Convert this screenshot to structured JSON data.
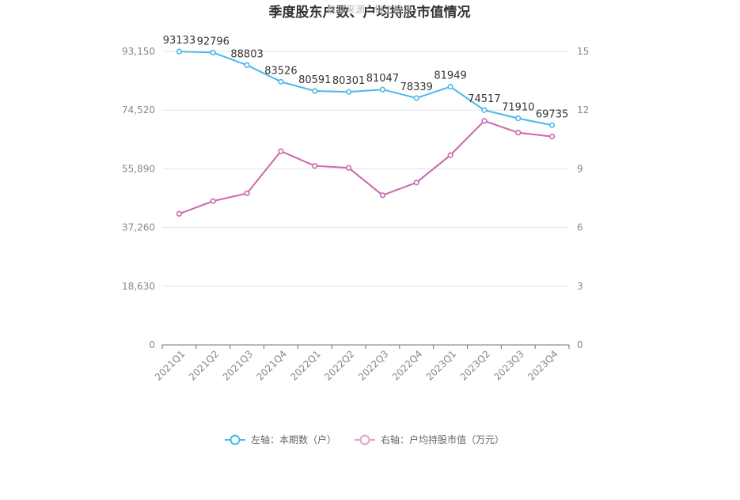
{
  "chart_data": {
    "type": "line",
    "title": "季度股东户数、户均持股市值情况",
    "watermark": "数据来源：恒生聚源",
    "categories": [
      "2021Q1",
      "2021Q2",
      "2021Q3",
      "2021Q4",
      "2022Q1",
      "2022Q2",
      "2022Q3",
      "2022Q4",
      "2023Q1",
      "2023Q2",
      "2023Q3",
      "2023Q4"
    ],
    "y_left": {
      "ticks": [
        "0",
        "18,630",
        "37,260",
        "55,890",
        "74,520",
        "93,150"
      ],
      "ylim": [
        0,
        93150
      ]
    },
    "y_right": {
      "ticks": [
        "0",
        "3",
        "6",
        "9",
        "12",
        "15"
      ],
      "ylim": [
        0,
        15
      ]
    },
    "series": [
      {
        "name": "左轴：本期数（户）",
        "axis": "left",
        "color": "#4ab8e8",
        "values": [
          93133,
          92796,
          88803,
          83526,
          80591,
          80301,
          81047,
          78339,
          81949,
          74517,
          71910,
          69735
        ],
        "labels": [
          "93133",
          "92796",
          "88803",
          "83526",
          "80591",
          "80301",
          "81047",
          "78339",
          "81949",
          "74517",
          "71910",
          "69735"
        ]
      },
      {
        "name": "右轴：户均持股市值（万元）",
        "axis": "right",
        "color": "#cc66aa",
        "legend_color": "#e8a0cc",
        "values": [
          6.7,
          7.35,
          7.75,
          9.9,
          9.15,
          9.05,
          7.65,
          8.3,
          9.7,
          11.45,
          10.85,
          10.65
        ]
      }
    ],
    "grid": true,
    "legend_position": "bottom-center"
  }
}
